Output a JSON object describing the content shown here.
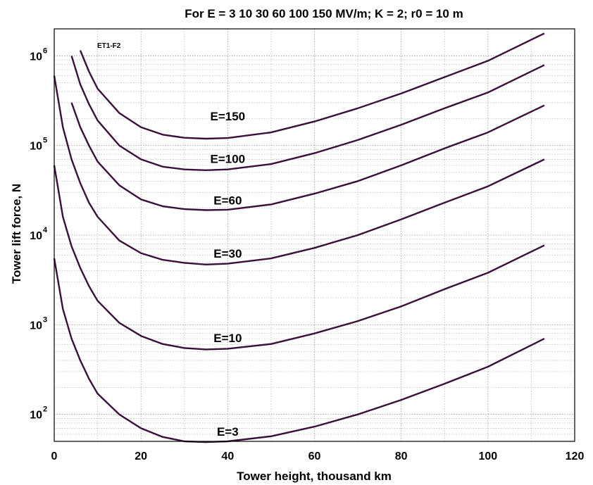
{
  "chart_data": {
    "type": "line",
    "title": "For E = 3   10   30   60   100   150 MV/m; K = 2; r0 = 10 m",
    "xlabel": "Tower height, thousand km",
    "ylabel": "Tower lift force, N",
    "tag": "ET1-F2",
    "xlim": [
      0,
      120
    ],
    "ylim": [
      50,
      2000000
    ],
    "yscale": "log",
    "grid": true,
    "x_ticks": [
      "0",
      "20",
      "40",
      "60",
      "80",
      "100",
      "120"
    ],
    "y_ticks": [
      {
        "base": "10",
        "exp": "2",
        "value": 100
      },
      {
        "base": "10",
        "exp": "3",
        "value": 1000
      },
      {
        "base": "10",
        "exp": "4",
        "value": 10000
      },
      {
        "base": "10",
        "exp": "5",
        "value": 100000
      },
      {
        "base": "10",
        "exp": "6",
        "value": 1000000
      }
    ],
    "line_color": "#3a0f3a",
    "series": [
      {
        "name": "E=3",
        "label": "E=3",
        "label_at": [
          40,
          58
        ],
        "x": [
          0,
          2,
          4,
          6,
          8,
          10,
          15,
          20,
          25,
          30,
          35,
          40,
          50,
          60,
          70,
          80,
          90,
          100,
          113
        ],
        "y": [
          5500,
          1500,
          700,
          400,
          250,
          170,
          100,
          70,
          56,
          50,
          49,
          50,
          57,
          73,
          100,
          145,
          220,
          340,
          700
        ]
      },
      {
        "name": "E=10",
        "label": "E=10",
        "label_at": [
          40,
          640
        ],
        "x": [
          0,
          2,
          4,
          6,
          8,
          10,
          15,
          20,
          25,
          30,
          35,
          40,
          50,
          60,
          70,
          80,
          90,
          100,
          113
        ],
        "y": [
          60000,
          16000,
          7500,
          4300,
          2700,
          1850,
          1050,
          750,
          610,
          550,
          530,
          540,
          610,
          800,
          1100,
          1600,
          2500,
          3800,
          7700
        ]
      },
      {
        "name": "E=30",
        "label": "E=30",
        "label_at": [
          40,
          5600
        ],
        "x": [
          0,
          2,
          4,
          6,
          8,
          10,
          15,
          20,
          25,
          30,
          35,
          40,
          50,
          60,
          70,
          80,
          90,
          100,
          113
        ],
        "y": [
          600000,
          160000,
          70000,
          38000,
          23000,
          16000,
          8700,
          6300,
          5300,
          4900,
          4700,
          4800,
          5500,
          7200,
          10000,
          15000,
          23000,
          35000,
          70000
        ]
      },
      {
        "name": "E=60",
        "label": "E=60",
        "label_at": [
          40,
          22000
        ],
        "x": [
          4,
          6,
          8,
          10,
          15,
          20,
          25,
          30,
          35,
          40,
          50,
          60,
          70,
          80,
          90,
          100,
          113
        ],
        "y": [
          300000,
          160000,
          100000,
          66000,
          36000,
          25000,
          21000,
          19500,
          19000,
          19200,
          22000,
          29000,
          40000,
          60000,
          93000,
          140000,
          280000
        ]
      },
      {
        "name": "E=100",
        "label": "E=100",
        "label_at": [
          40,
          64000
        ],
        "x": [
          4,
          6,
          8,
          10,
          15,
          20,
          25,
          30,
          35,
          40,
          50,
          60,
          70,
          80,
          90,
          100,
          113
        ],
        "y": [
          1000000,
          480000,
          290000,
          190000,
          100000,
          70000,
          58000,
          54000,
          53000,
          54000,
          62000,
          82000,
          115000,
          170000,
          260000,
          390000,
          790000
        ]
      },
      {
        "name": "E=150",
        "label": "E=150",
        "label_at": [
          40,
          190000
        ],
        "x": [
          6,
          8,
          10,
          15,
          20,
          25,
          30,
          35,
          40,
          50,
          60,
          70,
          80,
          90,
          100,
          113
        ],
        "y": [
          1150000,
          670000,
          430000,
          230000,
          160000,
          132000,
          122000,
          119000,
          121000,
          140000,
          185000,
          260000,
          380000,
          580000,
          880000,
          1780000
        ]
      }
    ]
  }
}
